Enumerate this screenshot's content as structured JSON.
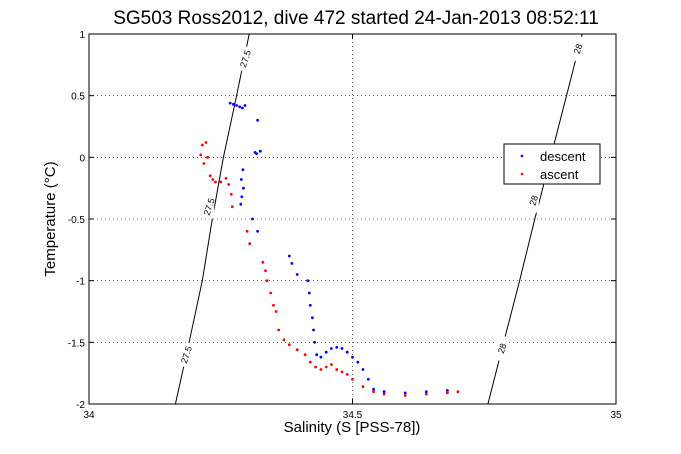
{
  "chart_data": {
    "type": "scatter",
    "title": "SG503 Ross2012, dive 472 started 24-Jan-2013 08:52:11",
    "xlabel": "Salinity (S [PSS-78])",
    "ylabel": "Temperature (°C)",
    "xlim": [
      34,
      35
    ],
    "ylim": [
      -2,
      1
    ],
    "x_ticks": [
      34,
      34.5,
      35
    ],
    "x_tick_labels": [
      "34",
      "34.5",
      "35"
    ],
    "y_ticks": [
      -2,
      -1.5,
      -1,
      -0.5,
      0,
      0.5,
      1
    ],
    "y_tick_labels": [
      "-2",
      "-1.5",
      "-1",
      "-0.5",
      "0",
      "0.5",
      "1"
    ],
    "grid": true,
    "legend_position": "right",
    "series": [
      {
        "name": "descent",
        "color": "#0000ff",
        "points": [
          [
            34.268,
            0.44
          ],
          [
            34.274,
            0.43
          ],
          [
            34.28,
            0.42
          ],
          [
            34.286,
            0.41
          ],
          [
            34.291,
            0.4
          ],
          [
            34.296,
            0.42
          ],
          [
            34.32,
            0.3
          ],
          [
            34.325,
            0.05
          ],
          [
            34.318,
            0.03
          ],
          [
            34.315,
            0.04
          ],
          [
            34.292,
            -0.1
          ],
          [
            34.289,
            -0.18
          ],
          [
            34.293,
            -0.25
          ],
          [
            34.29,
            -0.32
          ],
          [
            34.288,
            -0.38
          ],
          [
            34.31,
            -0.5
          ],
          [
            34.32,
            -0.6
          ],
          [
            34.38,
            -0.8
          ],
          [
            34.385,
            -0.86
          ],
          [
            34.395,
            -0.95
          ],
          [
            34.415,
            -1.0
          ],
          [
            34.418,
            -1.1
          ],
          [
            34.42,
            -1.2
          ],
          [
            34.424,
            -1.3
          ],
          [
            34.426,
            -1.4
          ],
          [
            34.428,
            -1.5
          ],
          [
            34.432,
            -1.6
          ],
          [
            34.44,
            -1.62
          ],
          [
            34.45,
            -1.58
          ],
          [
            34.46,
            -1.55
          ],
          [
            34.47,
            -1.54
          ],
          [
            34.48,
            -1.55
          ],
          [
            34.49,
            -1.58
          ],
          [
            34.5,
            -1.62
          ],
          [
            34.51,
            -1.66
          ],
          [
            34.52,
            -1.72
          ],
          [
            34.53,
            -1.8
          ],
          [
            34.54,
            -1.88
          ],
          [
            34.56,
            -1.9
          ],
          [
            34.6,
            -1.91
          ],
          [
            34.64,
            -1.9
          ],
          [
            34.68,
            -1.89
          ]
        ]
      },
      {
        "name": "ascent",
        "color": "#ff0000",
        "points": [
          [
            34.215,
            0.1
          ],
          [
            34.222,
            0.12
          ],
          [
            34.212,
            0.02
          ],
          [
            34.225,
            0.0
          ],
          [
            34.218,
            -0.05
          ],
          [
            34.23,
            -0.15
          ],
          [
            34.235,
            -0.18
          ],
          [
            34.24,
            -0.2
          ],
          [
            34.25,
            -0.2
          ],
          [
            34.26,
            -0.17
          ],
          [
            34.265,
            -0.22
          ],
          [
            34.27,
            -0.3
          ],
          [
            34.272,
            -0.4
          ],
          [
            34.3,
            -0.6
          ],
          [
            34.305,
            -0.7
          ],
          [
            34.33,
            -0.85
          ],
          [
            34.335,
            -0.92
          ],
          [
            34.338,
            -1.0
          ],
          [
            34.345,
            -1.1
          ],
          [
            34.35,
            -1.2
          ],
          [
            34.355,
            -1.25
          ],
          [
            34.36,
            -1.4
          ],
          [
            34.37,
            -1.48
          ],
          [
            34.38,
            -1.52
          ],
          [
            34.395,
            -1.56
          ],
          [
            34.41,
            -1.6
          ],
          [
            34.42,
            -1.66
          ],
          [
            34.43,
            -1.7
          ],
          [
            34.44,
            -1.72
          ],
          [
            34.45,
            -1.7
          ],
          [
            34.46,
            -1.68
          ],
          [
            34.47,
            -1.72
          ],
          [
            34.48,
            -1.74
          ],
          [
            34.49,
            -1.76
          ],
          [
            34.5,
            -1.8
          ],
          [
            34.52,
            -1.86
          ],
          [
            34.54,
            -1.9
          ],
          [
            34.56,
            -1.92
          ],
          [
            34.6,
            -1.93
          ],
          [
            34.64,
            -1.92
          ],
          [
            34.68,
            -1.91
          ],
          [
            34.7,
            -1.9
          ]
        ]
      }
    ],
    "contours": [
      {
        "label": "27.5",
        "points": [
          [
            34.164,
            -2
          ],
          [
            34.19,
            -1.5
          ],
          [
            34.215,
            -1.0
          ],
          [
            34.234,
            -0.5
          ],
          [
            34.255,
            0
          ],
          [
            34.28,
            0.5
          ],
          [
            34.304,
            1
          ]
        ],
        "label_positions": [
          [
            34.185,
            -1.6
          ],
          [
            34.228,
            -0.4
          ],
          [
            34.297,
            0.8
          ]
        ]
      },
      {
        "label": "28",
        "points": [
          [
            34.757,
            -2
          ],
          [
            34.787,
            -1.5
          ],
          [
            34.817,
            -1.0
          ],
          [
            34.846,
            -0.5
          ],
          [
            34.876,
            0
          ],
          [
            34.906,
            0.5
          ],
          [
            34.936,
            1
          ]
        ],
        "label_positions": [
          [
            34.784,
            -1.55
          ],
          [
            34.844,
            -0.35
          ],
          [
            34.928,
            0.88
          ]
        ]
      }
    ]
  }
}
